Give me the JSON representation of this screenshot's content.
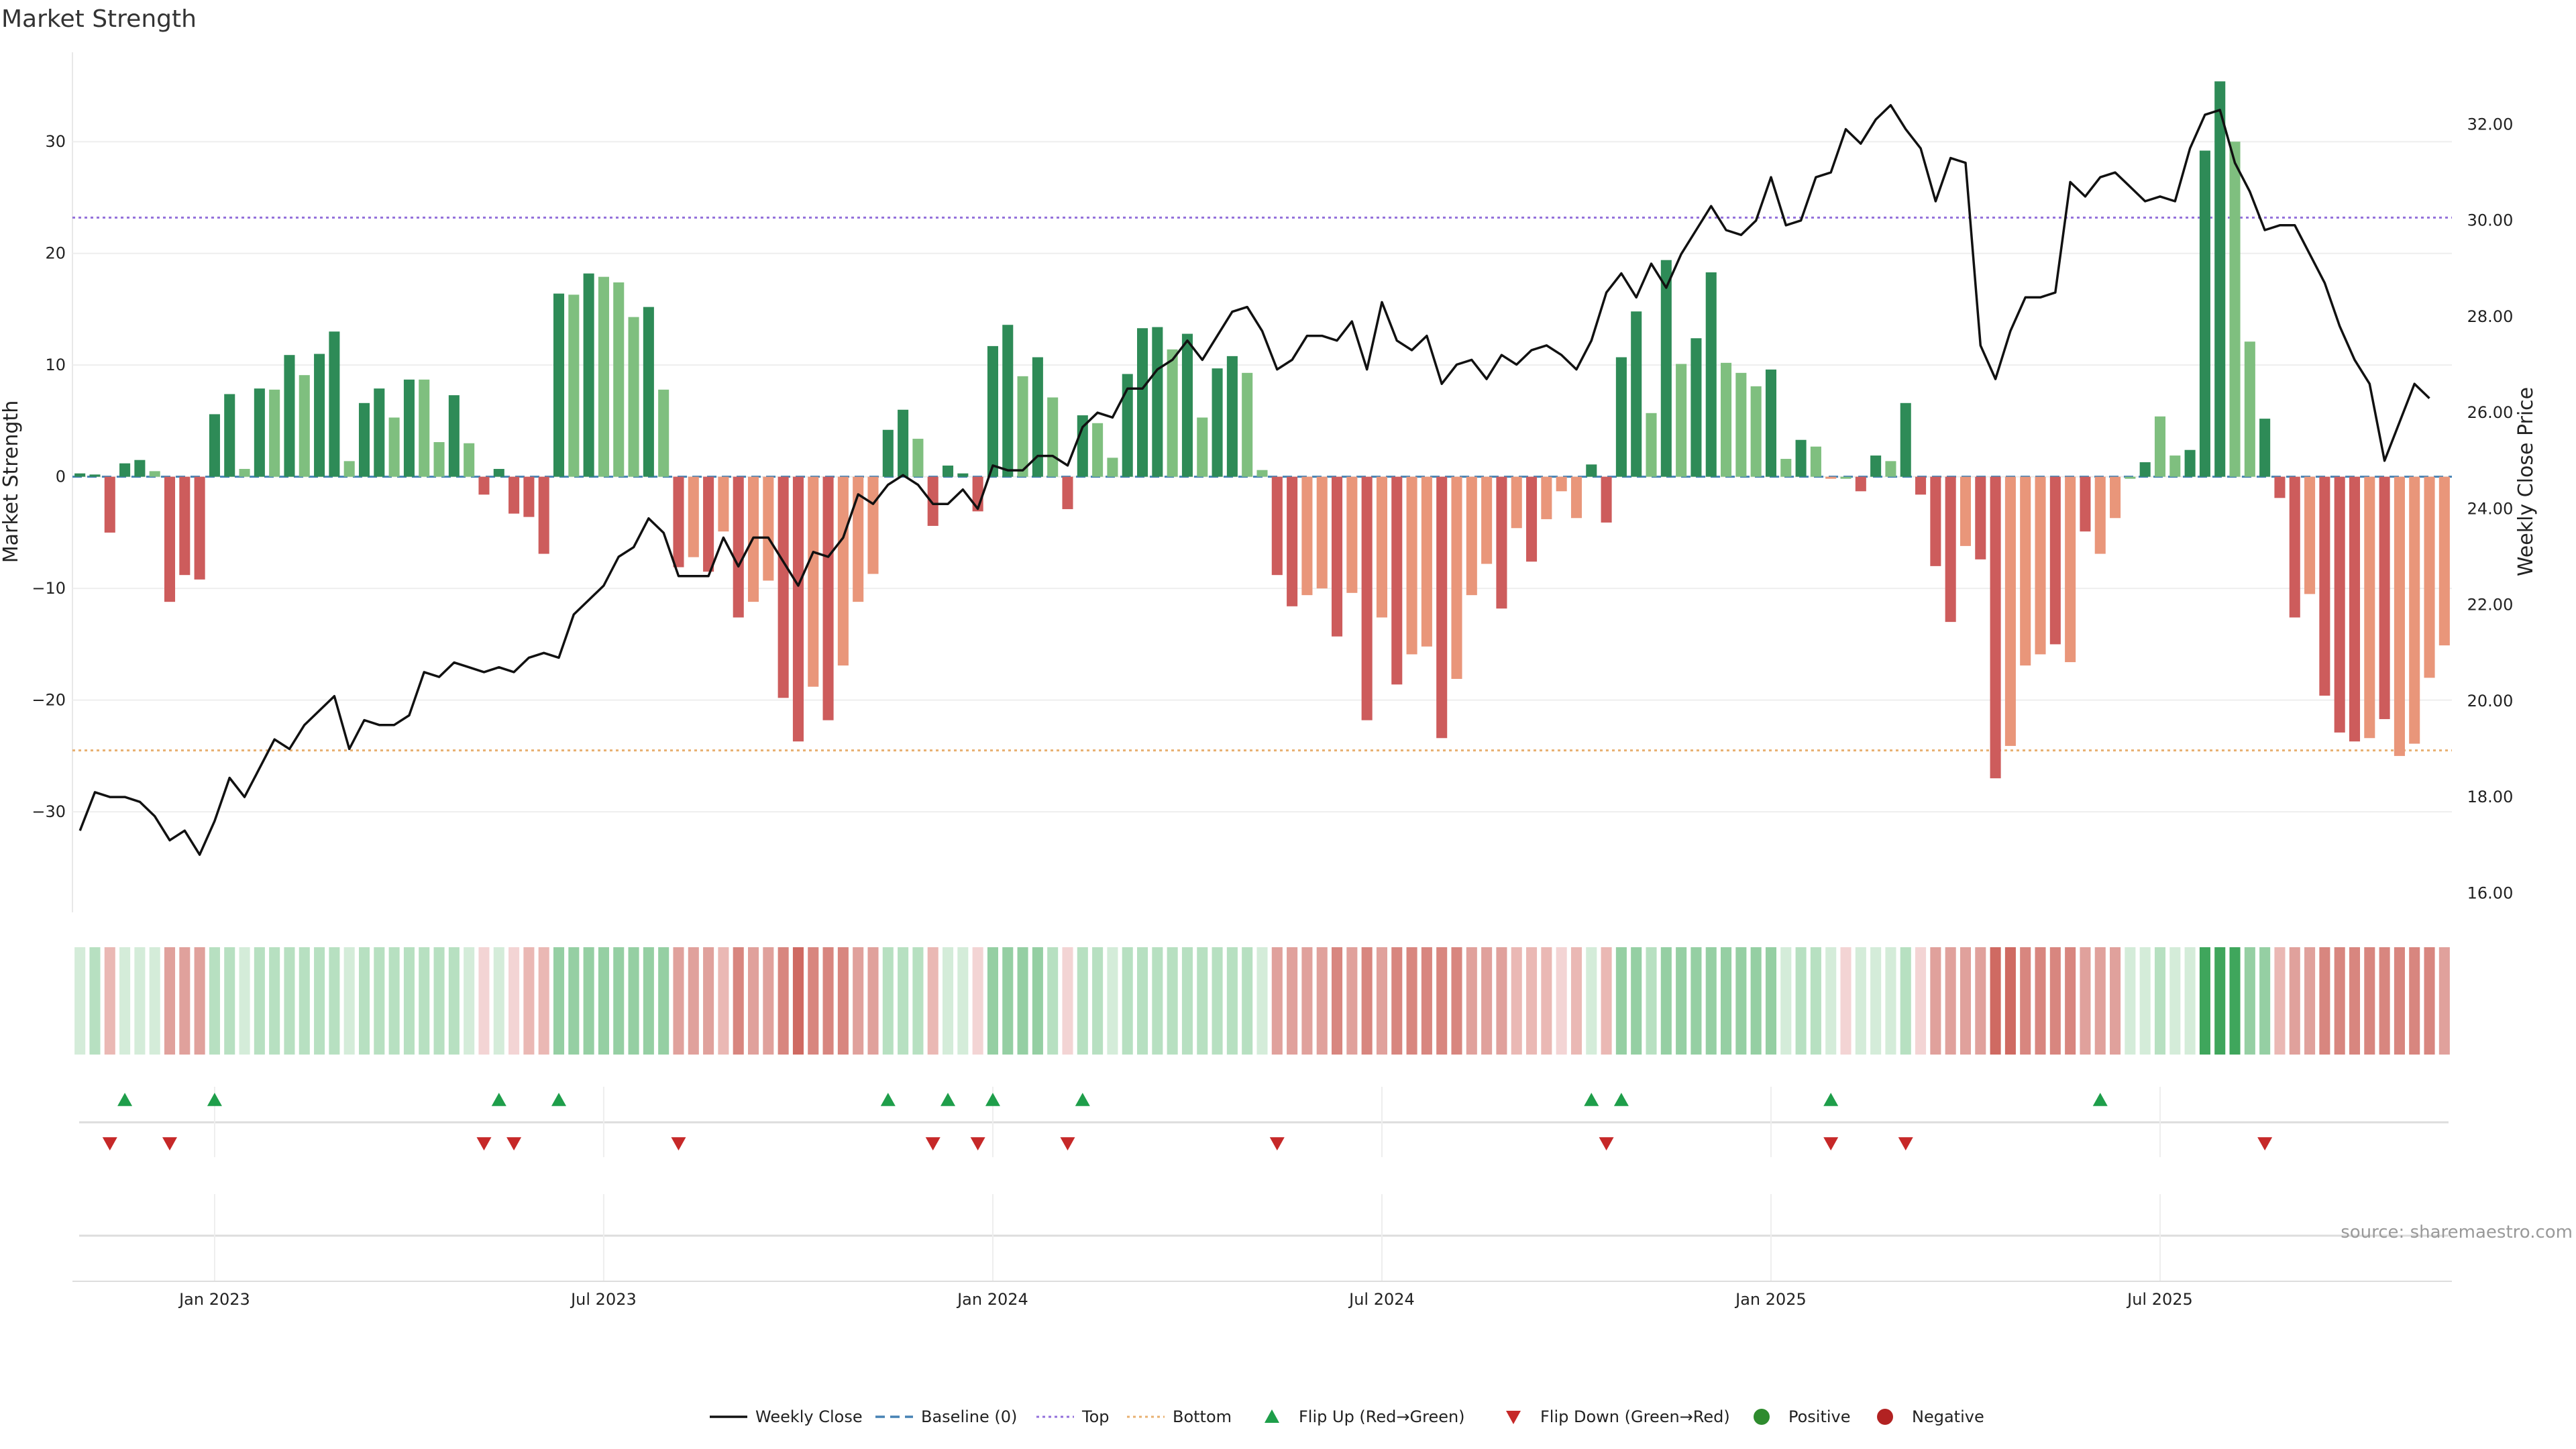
{
  "chart_data": {
    "type": "bar",
    "title": "Market Strength",
    "ylabel": "Market Strength",
    "y2label": "Weekly Close Price",
    "ylim": [
      -39,
      38
    ],
    "y2lim": [
      15.6,
      33.5
    ],
    "yticks": [
      "30",
      "20",
      "10",
      "0",
      "−10",
      "−20",
      "−30"
    ],
    "y2ticks": [
      "32.00",
      "30.00",
      "28.00",
      "26.00",
      "24.00",
      "22.00",
      "20.00",
      "18.00",
      "16.00"
    ],
    "xticks": [
      "Jan 2023",
      "Jul 2023",
      "Jan 2024",
      "Jul 2024",
      "Jan 2025",
      "Jul 2025"
    ],
    "top_line": 23.2,
    "bottom_line": -24.5,
    "source": "source: sharemaestro.com",
    "legend_position": "bottom-center",
    "colors": {
      "pos_strong": "#2e8b57",
      "pos_light": "#7fbf7f",
      "neg_strong": "#cd5c5c",
      "neg_light": "#e9967a",
      "price_line": "#111111",
      "top": "#9370db",
      "bottom": "#e8b070",
      "baseline": "#4682b4",
      "flip_up": "#1e9e4a",
      "flip_down": "#c62828"
    },
    "strength": [
      0.3,
      0.2,
      -5,
      1.2,
      1.5,
      0.5,
      -11.2,
      -8.8,
      -9.2,
      5.6,
      7.4,
      0.7,
      7.9,
      7.8,
      10.9,
      9.1,
      11,
      13,
      1.4,
      6.6,
      7.9,
      5.3,
      8.7,
      8.7,
      3.1,
      7.3,
      3,
      -1.6,
      0.7,
      -3.3,
      -3.6,
      -6.9,
      16.4,
      16.3,
      18.2,
      17.9,
      17.4,
      14.3,
      15.2,
      7.8,
      -8.1,
      -7.2,
      -8.5,
      -4.9,
      -12.6,
      -11.2,
      -9.3,
      -19.8,
      -23.7,
      -18.8,
      -21.8,
      -16.9,
      -11.2,
      -8.7,
      4.2,
      6,
      3.4,
      -4.4,
      1,
      0.3,
      -3.1,
      11.7,
      13.6,
      9,
      10.7,
      7.1,
      -2.9,
      5.5,
      4.8,
      1.7,
      9.2,
      13.3,
      13.4,
      11.4,
      12.8,
      5.3,
      9.7,
      10.8,
      9.3,
      0.6,
      -8.8,
      -11.6,
      -10.6,
      -10,
      -14.3,
      -10.4,
      -21.8,
      -12.6,
      -18.6,
      -15.9,
      -15.2,
      -23.4,
      -18.1,
      -10.6,
      -7.8,
      -11.8,
      -4.6,
      -7.6,
      -3.8,
      -1.3,
      -3.7,
      1.1,
      -4.1,
      10.7,
      14.8,
      5.7,
      19.4,
      10.1,
      12.4,
      18.3,
      10.2,
      9.3,
      8.1,
      9.6,
      1.6,
      3.3,
      2.7,
      -0.1,
      0,
      -1.3,
      1.9,
      1.4,
      6.6,
      -1.6,
      -8,
      -13,
      -6.2,
      -7.4,
      -27,
      -24.1,
      -16.9,
      -15.9,
      -15,
      -16.6,
      -4.9,
      -6.9,
      -3.7,
      0,
      1.3,
      5.4,
      1.9,
      2.4,
      29.2,
      35.4,
      30,
      12.1,
      5.2,
      -1.9,
      -12.6,
      -10.5,
      -19.6,
      -22.9,
      -23.7,
      -23.4,
      -21.7,
      -25,
      -23.9,
      -18,
      -15.1
    ],
    "strength_strong": [
      1,
      1,
      1,
      1,
      1,
      0,
      1,
      1,
      1,
      1,
      1,
      0,
      1,
      0,
      1,
      0,
      1,
      1,
      0,
      1,
      1,
      0,
      1,
      0,
      0,
      1,
      0,
      1,
      1,
      1,
      1,
      1,
      1,
      0,
      1,
      0,
      0,
      0,
      1,
      0,
      1,
      0,
      1,
      0,
      1,
      0,
      0,
      1,
      1,
      0,
      1,
      0,
      0,
      0,
      1,
      1,
      0,
      1,
      1,
      1,
      1,
      1,
      1,
      0,
      1,
      0,
      1,
      1,
      0,
      0,
      1,
      1,
      1,
      0,
      1,
      0,
      1,
      1,
      0,
      0,
      1,
      1,
      0,
      0,
      1,
      0,
      1,
      0,
      1,
      0,
      0,
      1,
      0,
      0,
      0,
      1,
      0,
      1,
      0,
      0,
      0,
      1,
      1,
      1,
      1,
      0,
      1,
      0,
      1,
      1,
      0,
      0,
      0,
      1,
      0,
      1,
      0,
      0,
      0,
      1,
      1,
      0,
      1,
      1,
      1,
      1,
      0,
      1,
      1,
      0,
      0,
      0,
      1,
      0,
      1,
      0,
      0,
      0,
      1,
      0,
      0,
      1,
      1,
      1,
      0,
      0,
      1,
      1,
      1,
      0,
      1,
      1,
      1,
      0,
      1,
      0,
      0,
      0
    ],
    "price": [
      17.3,
      18.1,
      18.0,
      18.0,
      17.9,
      17.6,
      17.1,
      17.3,
      16.8,
      17.5,
      18.4,
      18.0,
      18.6,
      19.2,
      19.0,
      19.5,
      19.8,
      20.1,
      19.0,
      19.6,
      19.5,
      19.5,
      19.7,
      20.6,
      20.5,
      20.8,
      20.7,
      20.6,
      20.7,
      20.6,
      20.9,
      21.0,
      20.9,
      21.8,
      22.1,
      22.4,
      23.0,
      23.2,
      23.8,
      23.5,
      22.6,
      22.6,
      22.6,
      23.4,
      22.8,
      23.4,
      23.4,
      22.9,
      22.4,
      23.1,
      23.0,
      23.4,
      24.3,
      24.1,
      24.5,
      24.7,
      24.5,
      24.1,
      24.1,
      24.4,
      24.0,
      24.9,
      24.8,
      24.8,
      25.1,
      25.1,
      24.9,
      25.7,
      26.0,
      25.9,
      26.5,
      26.5,
      26.9,
      27.1,
      27.5,
      27.1,
      27.6,
      28.1,
      28.2,
      27.7,
      26.9,
      27.1,
      27.6,
      27.6,
      27.5,
      27.9,
      26.9,
      28.3,
      27.5,
      27.3,
      27.6,
      26.6,
      27.0,
      27.1,
      26.7,
      27.2,
      27.0,
      27.3,
      27.4,
      27.2,
      26.9,
      27.5,
      28.5,
      28.9,
      28.4,
      29.1,
      28.6,
      29.3,
      29.8,
      30.3,
      29.8,
      29.7,
      30.0,
      30.9,
      29.9,
      30.0,
      30.9,
      31.0,
      31.9,
      31.6,
      32.1,
      32.4,
      31.9,
      31.5,
      30.4,
      31.3,
      31.2,
      27.4,
      26.7,
      27.7,
      28.4,
      28.4,
      28.5,
      30.8,
      30.5,
      30.9,
      31.0,
      30.7,
      30.4,
      30.5,
      30.4,
      31.5,
      32.2,
      32.3,
      31.2,
      30.6,
      29.8,
      29.9,
      29.9,
      29.3,
      28.7,
      27.8,
      27.1,
      26.6,
      25.0,
      25.8,
      26.6,
      26.3
    ],
    "heat_levels": [
      1,
      2,
      -2,
      1,
      1,
      1,
      -3,
      -3,
      -3,
      2,
      2,
      1,
      2,
      2,
      2,
      2,
      2,
      2,
      1,
      2,
      2,
      2,
      2,
      2,
      2,
      2,
      1,
      -1,
      1,
      -1,
      -2,
      -2,
      3,
      3,
      3,
      3,
      3,
      3,
      3,
      3,
      -3,
      -3,
      -3,
      -2,
      -4,
      -3,
      -3,
      -4,
      -5,
      -4,
      -4,
      -4,
      -3,
      -3,
      2,
      2,
      2,
      -2,
      1,
      1,
      -1,
      3,
      3,
      3,
      3,
      2,
      -1,
      2,
      2,
      1,
      2,
      2,
      2,
      2,
      2,
      2,
      2,
      2,
      2,
      1,
      -3,
      -3,
      -3,
      -3,
      -4,
      -3,
      -4,
      -3,
      -4,
      -4,
      -4,
      -4,
      -4,
      -3,
      -3,
      -3,
      -2,
      -2,
      -2,
      -1,
      -2,
      1,
      -2,
      3,
      3,
      2,
      3,
      3,
      3,
      3,
      3,
      3,
      3,
      3,
      1,
      2,
      2,
      1,
      -1,
      1,
      1,
      1,
      2,
      -1,
      -3,
      -3,
      -3,
      -3,
      -5,
      -5,
      -4,
      -4,
      -4,
      -4,
      -3,
      -3,
      -3,
      1,
      1,
      2,
      1,
      1,
      5,
      5,
      5,
      3,
      3,
      -2,
      -3,
      -3,
      -4,
      -4,
      -4,
      -4,
      -4,
      -4,
      -4,
      -4,
      -3
    ],
    "flip_up_weeks": [
      3,
      9,
      28,
      32,
      54,
      58,
      61,
      67,
      101,
      103,
      117,
      135
    ],
    "flip_down_weeks": [
      2,
      6,
      27,
      29,
      40,
      57,
      60,
      66,
      80,
      102,
      117,
      122,
      146
    ],
    "legend": [
      {
        "label": "Weekly Close",
        "kind": "line-solid"
      },
      {
        "label": "Baseline (0)",
        "kind": "line-dash"
      },
      {
        "label": "Top",
        "kind": "line-dot-top"
      },
      {
        "label": "Bottom",
        "kind": "line-dot-bottom"
      },
      {
        "label": "Flip Up (Red→Green)",
        "kind": "tri-up"
      },
      {
        "label": "Flip Down (Green→Red)",
        "kind": "tri-down"
      },
      {
        "label": "Positive",
        "kind": "dot-pos"
      },
      {
        "label": "Negative",
        "kind": "dot-neg"
      }
    ]
  }
}
